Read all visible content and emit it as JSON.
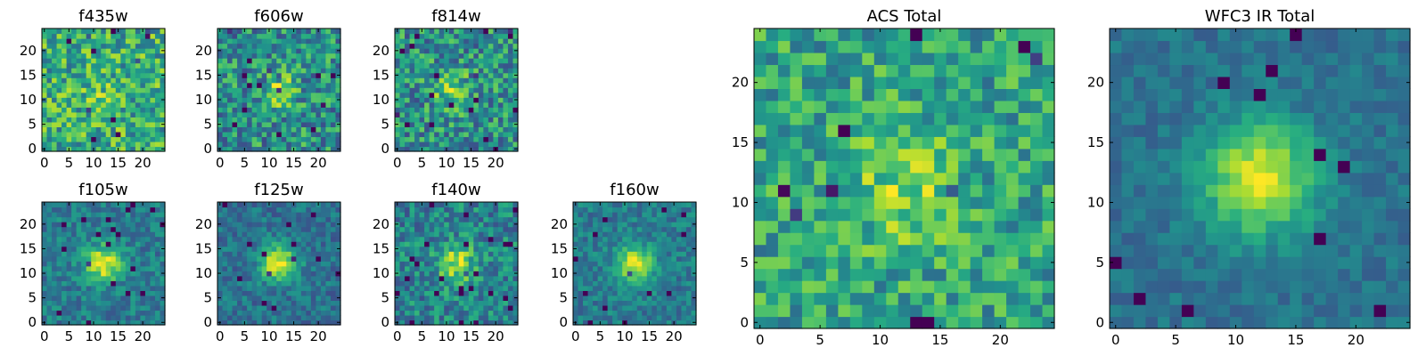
{
  "colormap": {
    "name": "viridis",
    "stops": [
      "#440154",
      "#472c7a",
      "#3b518b",
      "#2c718e",
      "#21908d",
      "#27ad81",
      "#5cc863",
      "#aadc32",
      "#fde725"
    ]
  },
  "chart_data": [
    {
      "type": "heatmap",
      "title": "f435w",
      "grid_size": 25,
      "xlim": [
        0,
        24
      ],
      "ylim": [
        0,
        24
      ],
      "xticks": [
        "0",
        "5",
        "10",
        "15",
        "20"
      ],
      "yticks": [
        "0",
        "5",
        "10",
        "15",
        "20"
      ],
      "source_center": [
        12,
        10
      ],
      "source_strength": 0.12,
      "noise": 0.55,
      "base": 0.62,
      "seed": 11
    },
    {
      "type": "heatmap",
      "title": "f606w",
      "grid_size": 25,
      "xlim": [
        0,
        24
      ],
      "ylim": [
        0,
        24
      ],
      "xticks": [
        "0",
        "5",
        "10",
        "15",
        "20"
      ],
      "yticks": [
        "0",
        "5",
        "10",
        "15",
        "20"
      ],
      "source_center": [
        12,
        12
      ],
      "source_strength": 0.3,
      "noise": 0.55,
      "base": 0.5,
      "seed": 23
    },
    {
      "type": "heatmap",
      "title": "f814w",
      "grid_size": 25,
      "xlim": [
        0,
        24
      ],
      "ylim": [
        0,
        24
      ],
      "xticks": [
        "0",
        "5",
        "10",
        "15",
        "20"
      ],
      "yticks": [
        "0",
        "5",
        "10",
        "15",
        "20"
      ],
      "source_center": [
        11,
        12
      ],
      "source_strength": 0.3,
      "noise": 0.55,
      "base": 0.5,
      "seed": 37
    },
    {
      "type": "heatmap",
      "title": "f105w",
      "grid_size": 25,
      "xlim": [
        0,
        24
      ],
      "ylim": [
        0,
        24
      ],
      "xticks": [
        "0",
        "5",
        "10",
        "15",
        "20"
      ],
      "yticks": [
        "0",
        "5",
        "10",
        "15",
        "20"
      ],
      "source_center": [
        12,
        12
      ],
      "source_strength": 0.55,
      "noise": 0.3,
      "base": 0.42,
      "seed": 41
    },
    {
      "type": "heatmap",
      "title": "f125w",
      "grid_size": 25,
      "xlim": [
        0,
        24
      ],
      "ylim": [
        0,
        24
      ],
      "xticks": [
        "0",
        "5",
        "10",
        "15",
        "20"
      ],
      "yticks": [
        "0",
        "5",
        "10",
        "15",
        "20"
      ],
      "source_center": [
        12,
        12
      ],
      "source_strength": 0.6,
      "noise": 0.28,
      "base": 0.38,
      "seed": 53
    },
    {
      "type": "heatmap",
      "title": "f140w",
      "grid_size": 25,
      "xlim": [
        0,
        24
      ],
      "ylim": [
        0,
        24
      ],
      "xticks": [
        "0",
        "5",
        "10",
        "15",
        "20"
      ],
      "yticks": [
        "0",
        "5",
        "10",
        "15",
        "20"
      ],
      "source_center": [
        12,
        12
      ],
      "source_strength": 0.45,
      "noise": 0.42,
      "base": 0.45,
      "seed": 67
    },
    {
      "type": "heatmap",
      "title": "f160w",
      "grid_size": 25,
      "xlim": [
        0,
        24
      ],
      "ylim": [
        0,
        24
      ],
      "xticks": [
        "0",
        "5",
        "10",
        "15",
        "20"
      ],
      "yticks": [
        "0",
        "5",
        "10",
        "15",
        "20"
      ],
      "source_center": [
        12,
        12
      ],
      "source_strength": 0.55,
      "noise": 0.28,
      "base": 0.42,
      "seed": 79
    },
    {
      "type": "heatmap",
      "title": "ACS Total",
      "grid_size": 25,
      "xlim": [
        0,
        24
      ],
      "ylim": [
        0,
        24
      ],
      "xticks": [
        "0",
        "5",
        "10",
        "15",
        "20"
      ],
      "yticks": [
        "0",
        "5",
        "10",
        "15",
        "20"
      ],
      "source_center": [
        12,
        11
      ],
      "source_strength": 0.25,
      "noise": 0.45,
      "base": 0.58,
      "seed": 97
    },
    {
      "type": "heatmap",
      "title": "WFC3 IR Total",
      "grid_size": 25,
      "xlim": [
        0,
        24
      ],
      "ylim": [
        0,
        24
      ],
      "xticks": [
        "0",
        "5",
        "10",
        "15",
        "20"
      ],
      "yticks": [
        "0",
        "5",
        "10",
        "15",
        "20"
      ],
      "source_center": [
        12,
        12
      ],
      "source_strength": 0.6,
      "noise": 0.18,
      "base": 0.38,
      "seed": 113
    }
  ]
}
